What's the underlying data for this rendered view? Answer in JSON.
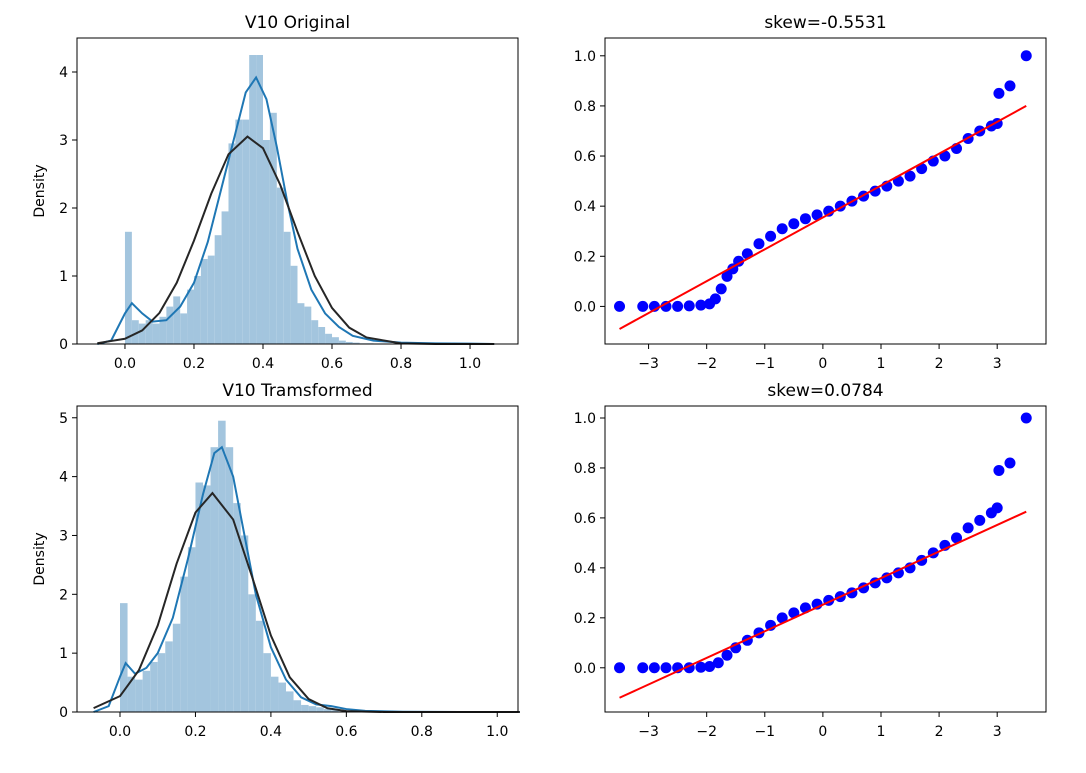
{
  "chart_data": [
    {
      "type": "histogram",
      "title": "V10 Original",
      "ylabel": "Density",
      "xlim": [
        -0.139,
        1.139
      ],
      "ylim": [
        0,
        4.5
      ],
      "xticks": [
        {
          "value": 0,
          "label": "0.0"
        },
        {
          "value": 0.2,
          "label": "0.2"
        },
        {
          "value": 0.4,
          "label": "0.4"
        },
        {
          "value": 0.6,
          "label": "0.6"
        },
        {
          "value": 0.8,
          "label": "0.8"
        },
        {
          "value": 1,
          "label": "1.0"
        }
      ],
      "yticks": [
        0,
        1,
        2,
        3,
        4
      ],
      "color": "#a3c5de",
      "bins": [
        0,
        0.02,
        0.04,
        0.06,
        0.08,
        0.1,
        0.12,
        0.14,
        0.16,
        0.18,
        0.2,
        0.22,
        0.24,
        0.26,
        0.28,
        0.3,
        0.32,
        0.34,
        0.36,
        0.38,
        0.4,
        0.42,
        0.44,
        0.46,
        0.48,
        0.5,
        0.52,
        0.54,
        0.56,
        0.58,
        0.6,
        0.62,
        0.64,
        0.66,
        0.68,
        0.7,
        0.72,
        0.74,
        0.76,
        0.78,
        0.8,
        0.82,
        0.84,
        0.86,
        0.88,
        0.9,
        0.92,
        0.94,
        0.96,
        0.98,
        1.0
      ],
      "values": [
        1.65,
        0.35,
        0.3,
        0.35,
        0.3,
        0.4,
        0.55,
        0.7,
        0.45,
        0.8,
        1.0,
        1.25,
        1.3,
        1.6,
        1.95,
        2.95,
        3.3,
        3.3,
        4.25,
        4.25,
        3.0,
        3.4,
        2.3,
        1.65,
        1.15,
        0.6,
        0.55,
        0.35,
        0.25,
        0.15,
        0.1,
        0.05,
        0.03,
        0.02,
        0.01,
        0.01,
        0.005,
        0,
        0,
        0,
        0,
        0,
        0,
        0,
        0,
        0,
        0,
        0,
        0,
        0
      ],
      "series": [
        {
          "color": "#1f77b4",
          "x": [
            -0.08,
            -0.04,
            0,
            0.02,
            0.05,
            0.08,
            0.12,
            0.16,
            0.2,
            0.24,
            0.28,
            0.32,
            0.35,
            0.38,
            0.41,
            0.44,
            0.47,
            0.5,
            0.54,
            0.58,
            0.62,
            0.66,
            0.72,
            0.8,
            0.9,
            1.0,
            1.07
          ],
          "values": [
            0,
            0.05,
            0.45,
            0.6,
            0.45,
            0.33,
            0.35,
            0.55,
            0.9,
            1.5,
            2.3,
            3.1,
            3.7,
            3.92,
            3.6,
            2.9,
            2.1,
            1.4,
            0.8,
            0.45,
            0.25,
            0.12,
            0.05,
            0.02,
            0.01,
            0.005,
            0
          ]
        },
        {
          "color": "#262626",
          "x": [
            -0.08,
            0,
            0.05,
            0.1,
            0.15,
            0.2,
            0.25,
            0.3,
            0.355,
            0.4,
            0.45,
            0.5,
            0.55,
            0.6,
            0.65,
            0.7,
            0.8,
            0.9,
            1.0,
            1.07
          ],
          "values": [
            0.012,
            0.077,
            0.2,
            0.457,
            0.9,
            1.52,
            2.21,
            2.79,
            3.05,
            2.88,
            2.34,
            1.65,
            1.0,
            0.53,
            0.24,
            0.096,
            0.009,
            0,
            0,
            0
          ]
        }
      ]
    },
    {
      "type": "scatter",
      "title": "skew=-0.5531",
      "xlim": [
        -3.75,
        3.84
      ],
      "ylim": [
        -0.15,
        1.071
      ],
      "xticks": [
        {
          "value": -3,
          "label": "−3"
        },
        {
          "value": -2,
          "label": "−2"
        },
        {
          "value": -1,
          "label": "−1"
        },
        0,
        1,
        2,
        3
      ],
      "yticks": [
        {
          "value": 0,
          "label": "0.0"
        },
        {
          "value": 0.2,
          "label": "0.2"
        },
        {
          "value": 0.4,
          "label": "0.4"
        },
        {
          "value": 0.6,
          "label": "0.6"
        },
        {
          "value": 0.8,
          "label": "0.8"
        },
        {
          "value": 1,
          "label": "1.0"
        }
      ],
      "series": [
        {
          "mode": "markers",
          "color": "#0000ff",
          "x": [
            -3.5,
            -3.1,
            -2.9,
            -2.7,
            -2.5,
            -2.3,
            -2.1,
            -1.95,
            -1.85,
            -1.75,
            -1.65,
            -1.55,
            -1.45,
            -1.3,
            -1.1,
            -0.9,
            -0.7,
            -0.5,
            -0.3,
            -0.1,
            0.1,
            0.3,
            0.5,
            0.7,
            0.9,
            1.1,
            1.3,
            1.5,
            1.7,
            1.9,
            2.1,
            2.3,
            2.5,
            2.7,
            2.9,
            3.0,
            3.03,
            3.22,
            3.5
          ],
          "values": [
            0,
            0,
            0,
            0,
            0,
            0.002,
            0.005,
            0.01,
            0.03,
            0.07,
            0.12,
            0.15,
            0.18,
            0.21,
            0.25,
            0.28,
            0.31,
            0.33,
            0.35,
            0.365,
            0.38,
            0.4,
            0.42,
            0.44,
            0.46,
            0.48,
            0.5,
            0.52,
            0.55,
            0.58,
            0.6,
            0.63,
            0.67,
            0.7,
            0.72,
            0.73,
            0.85,
            0.88,
            1.0
          ]
        },
        {
          "mode": "line",
          "color": "#ff0000",
          "x": [
            -3.5,
            3.5
          ],
          "values": [
            -0.09,
            0.8
          ]
        }
      ]
    },
    {
      "type": "histogram",
      "title": "V10 Tramsformed",
      "ylabel": "Density",
      "xlim": [
        -0.114,
        1.055
      ],
      "ylim": [
        0,
        5.2
      ],
      "xticks": [
        {
          "value": 0,
          "label": "0.0"
        },
        {
          "value": 0.2,
          "label": "0.2"
        },
        {
          "value": 0.4,
          "label": "0.4"
        },
        {
          "value": 0.6,
          "label": "0.6"
        },
        {
          "value": 0.8,
          "label": "0.8"
        },
        {
          "value": 1,
          "label": "1.0"
        }
      ],
      "yticks": [
        0,
        1,
        2,
        3,
        4,
        5
      ],
      "color": "#a3c5de",
      "bins": [
        0,
        0.02,
        0.04,
        0.06,
        0.08,
        0.1,
        0.12,
        0.14,
        0.16,
        0.18,
        0.2,
        0.22,
        0.24,
        0.26,
        0.28,
        0.3,
        0.32,
        0.34,
        0.36,
        0.38,
        0.4,
        0.42,
        0.44,
        0.46,
        0.48,
        0.5,
        0.52,
        0.54,
        0.56,
        0.58,
        0.6,
        0.62,
        0.64,
        0.66,
        0.68,
        0.7,
        0.72,
        0.74,
        0.76,
        0.78,
        0.8,
        0.82,
        0.84,
        0.86,
        0.88,
        0.9,
        0.92,
        0.94,
        0.96,
        0.98,
        1.0
      ],
      "values": [
        1.85,
        0.6,
        0.55,
        0.7,
        0.85,
        1.0,
        1.2,
        1.5,
        2.3,
        2.8,
        3.9,
        3.85,
        4.5,
        4.95,
        4.5,
        3.55,
        3.0,
        2.0,
        1.55,
        1.0,
        0.6,
        0.5,
        0.35,
        0.2,
        0.12,
        0.1,
        0.08,
        0.05,
        0.03,
        0.01,
        0.01,
        0.005,
        0,
        0,
        0,
        0,
        0,
        0,
        0,
        0,
        0,
        0,
        0,
        0,
        0,
        0,
        0,
        0,
        0,
        0
      ],
      "series": [
        {
          "color": "#1f77b4",
          "x": [
            -0.07,
            -0.03,
            0,
            0.015,
            0.04,
            0.07,
            0.1,
            0.14,
            0.18,
            0.22,
            0.25,
            0.27,
            0.3,
            0.33,
            0.36,
            0.4,
            0.44,
            0.48,
            0.52,
            0.56,
            0.6,
            0.65,
            0.75,
            0.9,
            1.06
          ],
          "values": [
            0,
            0.1,
            0.6,
            0.83,
            0.65,
            0.75,
            1.0,
            1.6,
            2.6,
            3.7,
            4.4,
            4.5,
            4.0,
            3.0,
            2.0,
            1.1,
            0.55,
            0.25,
            0.13,
            0.1,
            0.05,
            0.02,
            0.005,
            0,
            0
          ]
        },
        {
          "color": "#262626",
          "x": [
            -0.07,
            0,
            0.05,
            0.1,
            0.15,
            0.2,
            0.245,
            0.3,
            0.35,
            0.4,
            0.45,
            0.5,
            0.55,
            0.6,
            0.7,
            1.06
          ],
          "values": [
            0.066,
            0.27,
            0.71,
            1.47,
            2.52,
            3.39,
            3.72,
            3.27,
            2.3,
            1.3,
            0.59,
            0.22,
            0.064,
            0.015,
            0,
            0
          ]
        }
      ]
    },
    {
      "type": "scatter",
      "title": "skew=0.0784",
      "xlim": [
        -3.75,
        3.84
      ],
      "ylim": [
        -0.177,
        1.048
      ],
      "xticks": [
        {
          "value": -3,
          "label": "−3"
        },
        {
          "value": -2,
          "label": "−2"
        },
        {
          "value": -1,
          "label": "−1"
        },
        0,
        1,
        2,
        3
      ],
      "yticks": [
        {
          "value": 0,
          "label": "0.0"
        },
        {
          "value": 0.2,
          "label": "0.2"
        },
        {
          "value": 0.4,
          "label": "0.4"
        },
        {
          "value": 0.6,
          "label": "0.6"
        },
        {
          "value": 0.8,
          "label": "0.8"
        },
        {
          "value": 1,
          "label": "1.0"
        }
      ],
      "series": [
        {
          "mode": "markers",
          "color": "#0000ff",
          "x": [
            -3.5,
            -3.1,
            -2.9,
            -2.7,
            -2.5,
            -2.3,
            -2.1,
            -1.95,
            -1.8,
            -1.65,
            -1.5,
            -1.3,
            -1.1,
            -0.9,
            -0.7,
            -0.5,
            -0.3,
            -0.1,
            0.1,
            0.3,
            0.5,
            0.7,
            0.9,
            1.1,
            1.3,
            1.5,
            1.7,
            1.9,
            2.1,
            2.3,
            2.5,
            2.7,
            2.9,
            3.0,
            3.03,
            3.22,
            3.5
          ],
          "values": [
            0,
            0,
            0,
            0,
            0,
            0,
            0.002,
            0.005,
            0.02,
            0.05,
            0.08,
            0.11,
            0.14,
            0.17,
            0.2,
            0.22,
            0.24,
            0.255,
            0.27,
            0.285,
            0.3,
            0.32,
            0.34,
            0.36,
            0.38,
            0.4,
            0.43,
            0.46,
            0.49,
            0.52,
            0.56,
            0.59,
            0.62,
            0.64,
            0.79,
            0.82,
            1.0
          ]
        },
        {
          "mode": "line",
          "color": "#ff0000",
          "x": [
            -3.5,
            3.5
          ],
          "values": [
            -0.12,
            0.625
          ]
        }
      ]
    }
  ]
}
